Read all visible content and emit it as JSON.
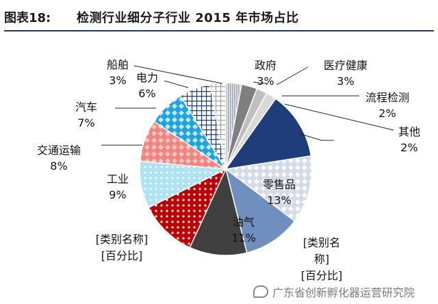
{
  "header": {
    "figure_number": "图表18:",
    "title": "检测行业细分子行业 2015 年市场占比"
  },
  "watermark": {
    "text": "广东省创新孵化器运营研究院"
  },
  "chart_data": {
    "type": "pie",
    "title": "检测行业细分子行业 2015 年市场占比",
    "start_angle_deg": 0,
    "direction": "clockwise",
    "unit": "%",
    "slices": [
      {
        "name": "政府",
        "value": 3,
        "label": "3%",
        "color": "#8e9db3",
        "pattern": "vlines"
      },
      {
        "name": "医疗健康",
        "value": 3,
        "label": "3%",
        "color": "#7f7f7f",
        "pattern": "none"
      },
      {
        "name": "流程检测",
        "value": 2,
        "label": "2%",
        "color": "#bfbfbf",
        "pattern": "none"
      },
      {
        "name": "其他",
        "value": 2,
        "label": "2%",
        "color": "#d9d9d9",
        "pattern": "none"
      },
      {
        "name": "",
        "value": 13,
        "label": "",
        "color": "#1f3d7a",
        "pattern": "none"
      },
      {
        "name": "零售品",
        "value": 13,
        "label": "13%",
        "color": "#d9d9d9",
        "pattern": "diamonds"
      },
      {
        "name": "油气",
        "value": 11,
        "label": "11%",
        "color": "#6f8fbf",
        "pattern": "none"
      },
      {
        "name": "",
        "value": 11,
        "label": "",
        "color": "#404040",
        "pattern": "none"
      },
      {
        "name": "",
        "value": 11,
        "label": "",
        "color": "#c00000",
        "pattern": "dots"
      },
      {
        "name": "工业",
        "value": 9,
        "label": "9%",
        "color": "#aee3f5",
        "pattern": "dots"
      },
      {
        "name": "交通运输",
        "value": 8,
        "label": "8%",
        "color": "#f2837d",
        "pattern": "diamonds"
      },
      {
        "name": "汽车",
        "value": 7,
        "label": "7%",
        "color": "#1fa3e0",
        "pattern": "diamonds"
      },
      {
        "name": "电力",
        "value": 6,
        "label": "6%",
        "color": "#1f3d7a",
        "pattern": "grid"
      },
      {
        "name": "船舶",
        "value": 3,
        "label": "3%",
        "color": "#9a9a9a",
        "pattern": "grid"
      }
    ],
    "placeholder_labels": [
      {
        "name": "[类别名称]",
        "value": "[百分比]"
      },
      {
        "name": "[类别名称]",
        "value": "[百分比]"
      }
    ]
  }
}
